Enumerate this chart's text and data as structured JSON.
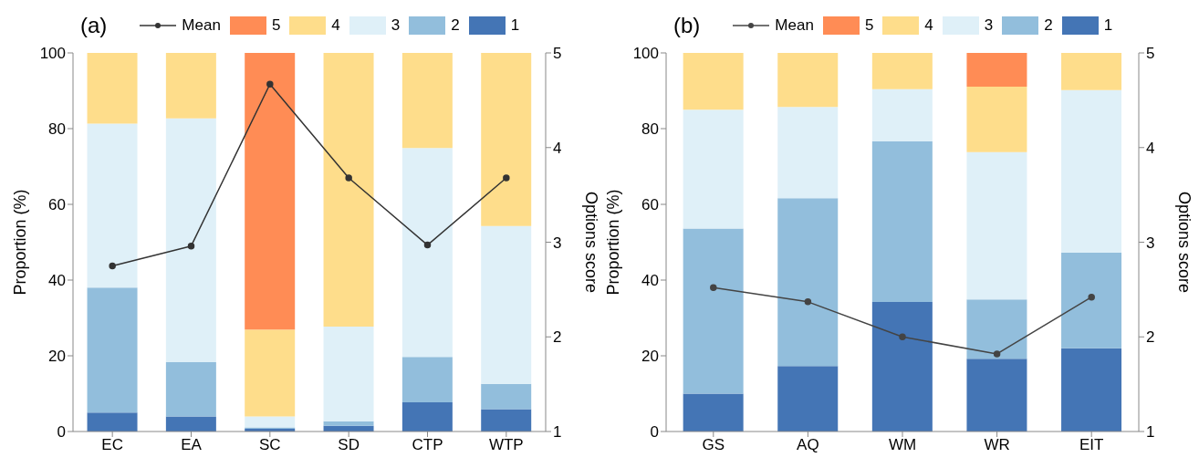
{
  "chart_data": [
    {
      "type": "bar",
      "title": "(a)",
      "categories": [
        "EC",
        "EA",
        "SC",
        "SD",
        "CTP",
        "WTP"
      ],
      "stacked": true,
      "legend": "top",
      "marker": "circle",
      "ylabel": "Proportion (%)",
      "y2label": "Options score",
      "ylim": [
        0,
        100
      ],
      "yticks": [
        0,
        20,
        40,
        60,
        80,
        100
      ],
      "y2lim": [
        1,
        5
      ],
      "y2ticks": [
        1,
        2,
        3,
        4,
        5
      ],
      "series": [
        {
          "name": "1",
          "color": "#4475b5",
          "values": [
            5,
            4,
            0.7,
            1.5,
            7.7,
            5.9
          ]
        },
        {
          "name": "2",
          "color": "#92bedc",
          "values": [
            33,
            14.3,
            0.4,
            1.2,
            12,
            6.7
          ]
        },
        {
          "name": "3",
          "color": "#dff0f8",
          "values": [
            43.3,
            64.4,
            2.9,
            25,
            55.2,
            41.7
          ]
        },
        {
          "name": "4",
          "color": "#fedd8b",
          "values": [
            18.7,
            17.3,
            22.9,
            72.3,
            25.1,
            45.7
          ]
        },
        {
          "name": "5",
          "color": "#ff8c55",
          "values": [
            0,
            0,
            73.1,
            0,
            0,
            0
          ]
        },
        {
          "name": "Mean",
          "type": "line",
          "axis": "y2",
          "color": "#333333",
          "values": [
            2.75,
            2.96,
            4.67,
            3.68,
            2.97,
            3.68
          ]
        }
      ]
    },
    {
      "type": "bar",
      "title": "(b)",
      "categories": [
        "GS",
        "AQ",
        "WM",
        "WR",
        "EIT"
      ],
      "stacked": true,
      "legend": "top",
      "marker": "circle",
      "ylabel": "Proportion (%)",
      "y2label": "Options score",
      "ylim": [
        0,
        100
      ],
      "yticks": [
        0,
        20,
        40,
        60,
        80,
        100
      ],
      "y2lim": [
        1,
        5
      ],
      "y2ticks": [
        1,
        2,
        3,
        4,
        5
      ],
      "series": [
        {
          "name": "1",
          "color": "#4475b5",
          "values": [
            10,
            17.3,
            34.2,
            19.2,
            22
          ]
        },
        {
          "name": "2",
          "color": "#92bedc",
          "values": [
            43.6,
            44.3,
            42.4,
            15.7,
            25.3
          ]
        },
        {
          "name": "3",
          "color": "#dff0f8",
          "values": [
            31.4,
            24.1,
            13.8,
            38.9,
            42.9
          ]
        },
        {
          "name": "4",
          "color": "#fedd8b",
          "values": [
            15,
            14.3,
            9.6,
            17.3,
            9.8
          ]
        },
        {
          "name": "5",
          "color": "#ff8c55",
          "values": [
            0,
            0,
            0,
            8.9,
            0
          ]
        },
        {
          "name": "Mean",
          "type": "line",
          "axis": "y2",
          "color": "#444444",
          "values": [
            2.52,
            2.37,
            2.0,
            1.82,
            2.42
          ]
        }
      ]
    }
  ]
}
